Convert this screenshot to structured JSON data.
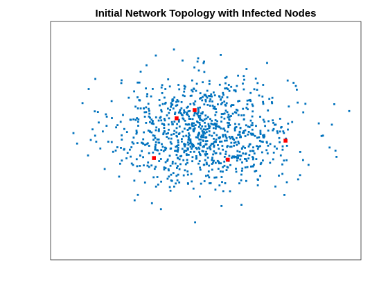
{
  "chart_data": {
    "type": "scatter",
    "title": "Initial Network Topology with Infected Nodes",
    "xlabel": "",
    "ylabel": "",
    "xlim": [
      0,
      1
    ],
    "ylim": [
      0,
      1
    ],
    "axis_ticks_visible": false,
    "grid": false,
    "legend": "none",
    "marker_style": "square",
    "node_count_visible": "approximately 1000",
    "series": [
      {
        "name": "",
        "color": "#0072BD",
        "description": "susceptible nodes, randomly scattered around center",
        "distribution": {
          "center": [
            0.495,
            0.535
          ],
          "spread": [
            0.145,
            0.115
          ],
          "count": 1000
        }
      },
      {
        "name": "",
        "color": "#FF0000",
        "description": "infected nodes",
        "points": [
          [
            0.406,
            0.594
          ],
          [
            0.464,
            0.628
          ],
          [
            0.333,
            0.427
          ],
          [
            0.571,
            0.42
          ],
          [
            0.757,
            0.5
          ]
        ]
      }
    ]
  }
}
